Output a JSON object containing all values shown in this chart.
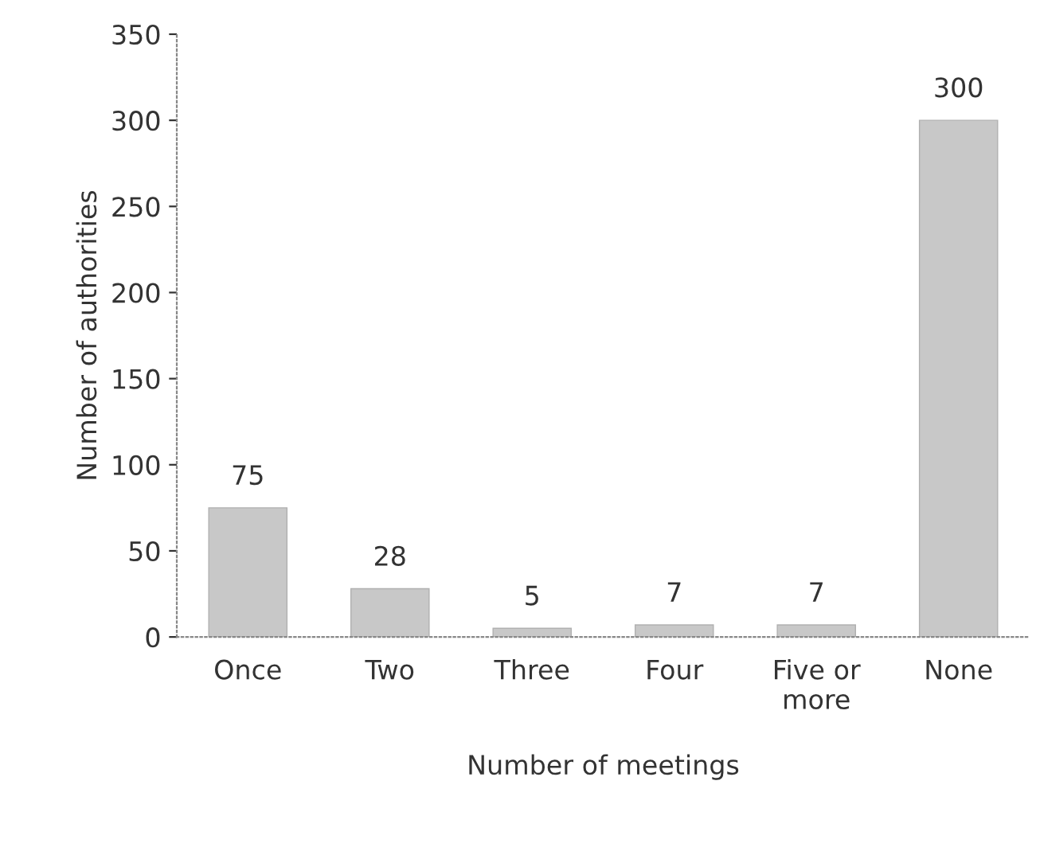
{
  "chart_data": {
    "type": "bar",
    "xlabel": "Number of meetings",
    "ylabel": "Number of authorities",
    "categories": [
      "Once",
      "Two",
      "Three",
      "Four",
      "Five or\nmore",
      "None"
    ],
    "values": [
      75,
      28,
      5,
      7,
      7,
      300
    ],
    "color": "#c8c8c8",
    "ylim": [
      0,
      350
    ],
    "yticks": [
      0,
      50,
      100,
      150,
      200,
      250,
      300,
      350
    ],
    "grid": false,
    "legend": false,
    "data_labels": true
  }
}
